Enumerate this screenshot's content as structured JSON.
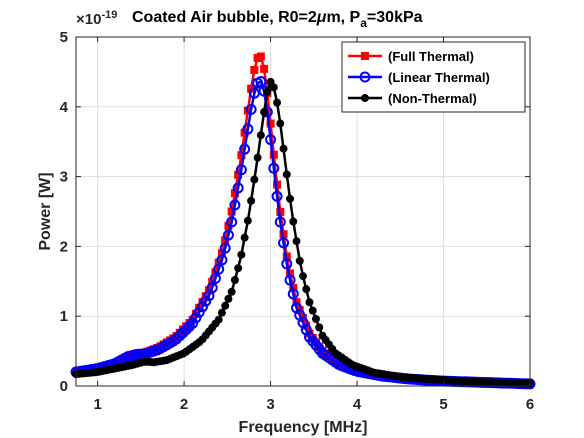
{
  "chart_data": {
    "type": "line",
    "title": {
      "main": "Coated Air bubble, R0=2",
      "mu": "μ",
      "unit": "m, P",
      "sub": "a",
      "tail": "=30kPa"
    },
    "exponent": {
      "base": "×10",
      "power": "-19"
    },
    "xlabel": "Frequency [MHz]",
    "ylabel": "Power [W]",
    "xlim": [
      0.75,
      6
    ],
    "ylim": [
      0,
      5
    ],
    "xticks": [
      1,
      2,
      3,
      4,
      5,
      6
    ],
    "yticks": [
      0,
      1,
      2,
      3,
      4,
      5
    ],
    "grid": true,
    "legend_position": "top-right",
    "series": [
      {
        "name": "(Full Thermal)",
        "color": "#ff0000",
        "marker": "square",
        "x": [
          0.75,
          1.0,
          1.2,
          1.35,
          1.45,
          1.55,
          1.7,
          1.9,
          2.1,
          2.3,
          2.45,
          2.55,
          2.65,
          2.72,
          2.78,
          2.83,
          2.87,
          2.9,
          2.94,
          2.98,
          3.03,
          3.1,
          3.2,
          3.3,
          3.45,
          3.6,
          3.8,
          4.0,
          4.3,
          4.6,
          5.0,
          5.5,
          6.0
        ],
        "y": [
          0.2,
          0.25,
          0.32,
          0.42,
          0.47,
          0.48,
          0.55,
          0.7,
          0.95,
          1.4,
          1.95,
          2.5,
          3.2,
          3.8,
          4.3,
          4.65,
          4.75,
          4.7,
          4.45,
          4.0,
          3.4,
          2.6,
          1.75,
          1.2,
          0.75,
          0.5,
          0.32,
          0.22,
          0.15,
          0.11,
          0.08,
          0.05,
          0.03
        ]
      },
      {
        "name": "(Linear Thermal)",
        "color": "#0000ff",
        "marker": "circle",
        "x": [
          0.75,
          1.0,
          1.2,
          1.35,
          1.45,
          1.55,
          1.7,
          1.9,
          2.1,
          2.3,
          2.45,
          2.55,
          2.65,
          2.72,
          2.78,
          2.83,
          2.87,
          2.9,
          2.94,
          2.98,
          3.03,
          3.1,
          3.2,
          3.3,
          3.45,
          3.6,
          3.8,
          4.0,
          4.3,
          4.6,
          5.0,
          5.5,
          6.0
        ],
        "y": [
          0.2,
          0.25,
          0.32,
          0.42,
          0.45,
          0.46,
          0.52,
          0.66,
          0.9,
          1.32,
          1.85,
          2.35,
          3.0,
          3.55,
          4.0,
          4.3,
          4.38,
          4.35,
          4.15,
          3.75,
          3.2,
          2.45,
          1.65,
          1.12,
          0.7,
          0.47,
          0.3,
          0.21,
          0.14,
          0.1,
          0.07,
          0.05,
          0.03
        ]
      },
      {
        "name": "(Non-Thermal)",
        "color": "#000000",
        "marker": "circle-filled",
        "x": [
          0.75,
          1.0,
          1.2,
          1.4,
          1.55,
          1.65,
          1.8,
          2.0,
          2.2,
          2.4,
          2.55,
          2.65,
          2.75,
          2.83,
          2.9,
          2.95,
          2.99,
          3.03,
          3.07,
          3.12,
          3.18,
          3.25,
          3.35,
          3.45,
          3.6,
          3.75,
          3.95,
          4.2,
          4.5,
          4.8,
          5.2,
          5.6,
          6.0
        ],
        "y": [
          0.17,
          0.2,
          0.25,
          0.3,
          0.35,
          0.34,
          0.37,
          0.47,
          0.65,
          0.95,
          1.35,
          1.8,
          2.45,
          3.1,
          3.7,
          4.15,
          4.37,
          4.32,
          4.1,
          3.7,
          3.1,
          2.45,
          1.7,
          1.2,
          0.72,
          0.47,
          0.3,
          0.19,
          0.13,
          0.1,
          0.07,
          0.05,
          0.04
        ]
      }
    ]
  }
}
